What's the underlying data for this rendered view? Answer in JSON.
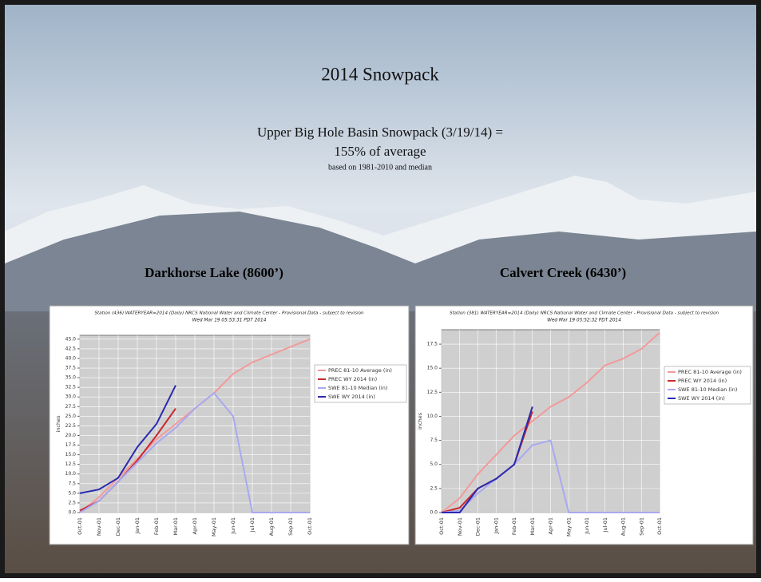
{
  "slide": {
    "title": "2014 Snowpack",
    "line1": "Upper Big Hole Basin Snowpack (3/19/14)  =",
    "line2": "155% of average",
    "note": "based on 1981-2010 and median",
    "station1": "Darkhorse Lake (8600’)",
    "station2": "Calvert Creek (6430’)"
  },
  "chart_data": [
    {
      "type": "line",
      "title": "Station (436) WATERYEAR=2014 (Daily) NRCS National Water and Climate Center - Provisional Data - subject to revision",
      "subtitle": "Wed Mar 19 05:53:31 PDT 2014",
      "y_label": "inches",
      "grid": true,
      "categories": [
        "Oct-01",
        "Nov-01",
        "Dec-01",
        "Jan-01",
        "Feb-01",
        "Mar-01",
        "Apr-01",
        "May-01",
        "Jun-01",
        "Jul-01",
        "Aug-01",
        "Sep-01",
        "Oct-01"
      ],
      "ylim": [
        0,
        46
      ],
      "yticks": [
        {
          "value": 0,
          "label": "0.0"
        },
        {
          "value": 2.5,
          "label": "2.5"
        },
        {
          "value": 5,
          "label": "5.0"
        },
        {
          "value": 7.5,
          "label": "7.5"
        },
        {
          "value": 10,
          "label": "10.0"
        },
        {
          "value": 12.5,
          "label": "12.5"
        },
        {
          "value": 15,
          "label": "15.0"
        },
        {
          "value": 17.5,
          "label": "17.5"
        },
        {
          "value": 20,
          "label": "20.0"
        },
        {
          "value": 22.5,
          "label": "22.5"
        },
        {
          "value": 25,
          "label": "25.0"
        },
        {
          "value": 27.5,
          "label": "27.5"
        },
        {
          "value": 30,
          "label": "30.0"
        },
        {
          "value": 32.5,
          "label": "32.5"
        },
        {
          "value": 35,
          "label": "35.0"
        },
        {
          "value": 37.5,
          "label": "37.5"
        },
        {
          "value": 40,
          "label": "40.0"
        },
        {
          "value": 42.5,
          "label": "42.5"
        },
        {
          "value": 45,
          "label": "45.0"
        }
      ],
      "series": [
        {
          "name": "PREC 81-10 Average (in)",
          "color": "#f29a9a",
          "values": [
            0,
            4,
            9,
            14,
            19,
            23,
            27,
            31,
            36,
            39,
            41,
            43,
            45
          ]
        },
        {
          "name": "PREC WY 2014  (in)",
          "color": "#c8282d",
          "values": [
            0.5,
            3,
            8,
            13.5,
            20,
            27,
            null,
            null,
            null,
            null,
            null,
            null,
            null
          ]
        },
        {
          "name": "SWE 81-10 Median (in)",
          "color": "#a9a9f0",
          "values": [
            0,
            3,
            8,
            13,
            18,
            22,
            27,
            31,
            25,
            0,
            0,
            0,
            0
          ]
        },
        {
          "name": "SWE WY 2014  (in)",
          "color": "#2a2ab0",
          "values": [
            5,
            6,
            9,
            17,
            23,
            33,
            null,
            null,
            null,
            null,
            null,
            null,
            null
          ]
        }
      ]
    },
    {
      "type": "line",
      "title": "Station (381) WATERYEAR=2014 (Daily) NRCS National Water and Climate Center - Provisional Data - subject to revision",
      "subtitle": "Wed Mar 19 05:52:32 PDT 2014",
      "y_label": "inches",
      "grid": true,
      "categories": [
        "Oct-01",
        "Nov-01",
        "Dec-01",
        "Jan-01",
        "Feb-01",
        "Mar-01",
        "Apr-01",
        "May-01",
        "Jun-01",
        "Jul-01",
        "Aug-01",
        "Sep-01",
        "Oct-01"
      ],
      "ylim": [
        0,
        19
      ],
      "yticks": [
        {
          "value": 0,
          "label": "0.0"
        },
        {
          "value": 2.5,
          "label": "2.5"
        },
        {
          "value": 5,
          "label": "5.0"
        },
        {
          "value": 7.5,
          "label": "7.5"
        },
        {
          "value": 10,
          "label": "10.0"
        },
        {
          "value": 12.5,
          "label": "12.5"
        },
        {
          "value": 15,
          "label": "15.0"
        },
        {
          "value": 17.5,
          "label": "17.5"
        }
      ],
      "series": [
        {
          "name": "PREC 81-10 Average (in)",
          "color": "#f29a9a",
          "values": [
            0,
            1.5,
            4,
            6,
            8,
            9.5,
            11,
            12,
            13.5,
            15.3,
            16,
            17,
            18.7
          ]
        },
        {
          "name": "PREC WY 2014  (in)",
          "color": "#c8282d",
          "values": [
            0,
            0.5,
            2.5,
            3.5,
            5,
            10.5,
            null,
            null,
            null,
            null,
            null,
            null,
            null
          ]
        },
        {
          "name": "SWE 81-10 Median (in)",
          "color": "#a9a9f0",
          "values": [
            0,
            0.2,
            2,
            3.5,
            5,
            7,
            7.5,
            0,
            0,
            0,
            0,
            0,
            0
          ]
        },
        {
          "name": "SWE WY 2014  (in)",
          "color": "#2a2ab0",
          "values": [
            0,
            0,
            2.5,
            3.5,
            5,
            11,
            null,
            null,
            null,
            null,
            null,
            null,
            null
          ]
        }
      ]
    }
  ]
}
